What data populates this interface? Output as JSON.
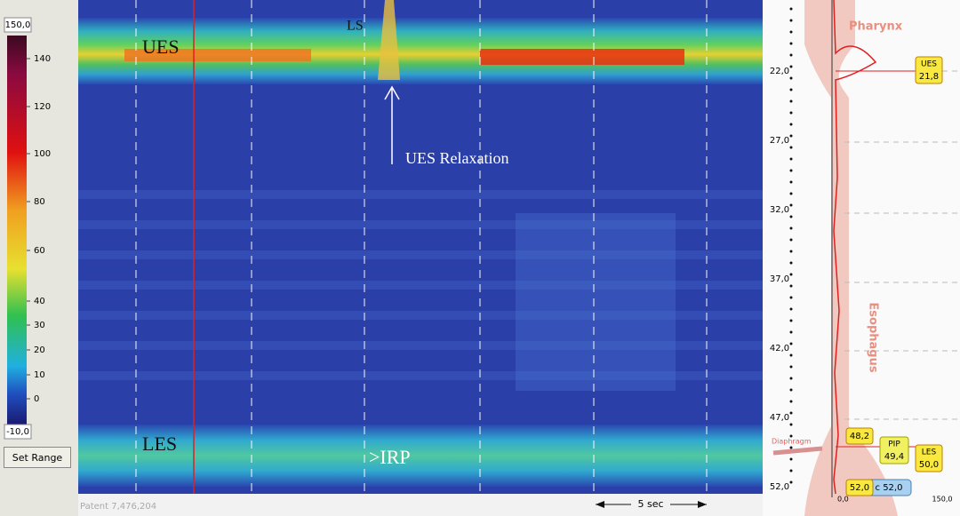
{
  "color_scale": {
    "max_label": "150,0",
    "ticks": [
      "140",
      "120",
      "100",
      "80",
      "60",
      "40",
      "30",
      "20",
      "10",
      "0"
    ],
    "min_label": "-10,0",
    "button": "Set Range"
  },
  "plot": {
    "annotations": {
      "ues": "UES",
      "ls": "LS",
      "relaxation": "UES Relaxation",
      "les": "LES",
      "irp": ">IRP"
    },
    "footer": "Patent 7,476,204",
    "scale_bar": "5 sec"
  },
  "profile": {
    "depth_labels": [
      "22,0",
      "27,0",
      "32,0",
      "37,0",
      "42,0",
      "47,0",
      "52,0"
    ],
    "regions": {
      "pharynx": "Pharynx",
      "esophagus": "Esophagus",
      "diaphragm": "Diaphragm"
    },
    "markers": {
      "ues_name": "UES",
      "ues_value": "21,8",
      "upper": "48,2",
      "pip_name": "PIP",
      "pip_value": "49,4",
      "les_name": "LES",
      "les_value": "50,0",
      "lower": "52,0",
      "catheter": "c 52,0"
    },
    "x_axis": [
      "0,0",
      "150,0"
    ]
  }
}
